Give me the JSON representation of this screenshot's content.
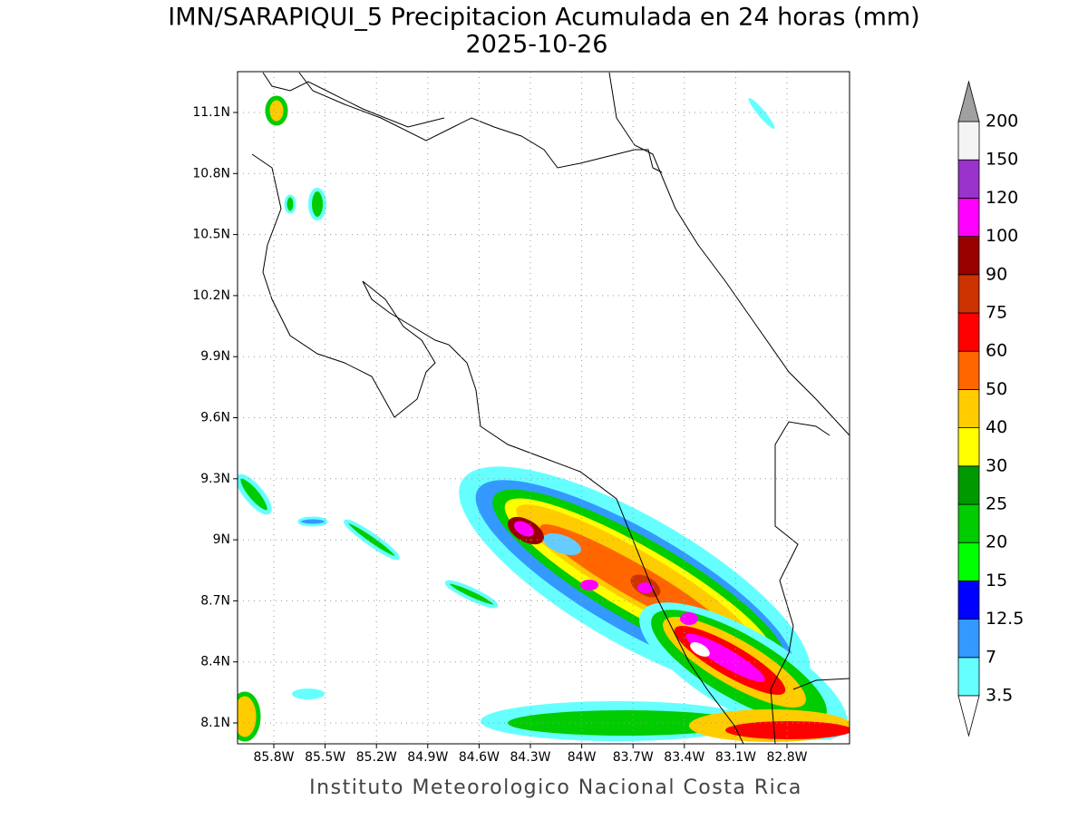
{
  "title": "IMN/SARAPIQUI_5 Precipitacion Acumulada en 24 horas (mm)",
  "subtitle": "2025-10-26",
  "map": {
    "lat_ticks": [
      "11.1N",
      "10.8N",
      "10.5N",
      "10.2N",
      "9.9N",
      "9.6N",
      "9.3N",
      "9N",
      "8.7N",
      "8.4N",
      "8.1N"
    ],
    "lon_ticks": [
      "85.8W",
      "85.5W",
      "85.2W",
      "84.9W",
      "84.6W",
      "84.3W",
      "84W",
      "83.7W",
      "83.4W",
      "83.1W",
      "82.8W"
    ]
  },
  "colorbar": {
    "levels": [
      "3.5",
      "7",
      "12.5",
      "15",
      "20",
      "25",
      "30",
      "40",
      "50",
      "60",
      "75",
      "90",
      "100",
      "120",
      "150",
      "200"
    ],
    "colors": [
      "#66ffff",
      "#3399ff",
      "#0000ff",
      "#00ff00",
      "#00cc00",
      "#009900",
      "#ffff00",
      "#ffcc00",
      "#ff6600",
      "#ff0000",
      "#cc3300",
      "#990000",
      "#ff00ff",
      "#9933cc",
      "#f4f4f4"
    ],
    "under_color": "#ffffff",
    "over_color": "#a0a0a0"
  },
  "footer": "Instituto Meteorologico Nacional Costa Rica"
}
